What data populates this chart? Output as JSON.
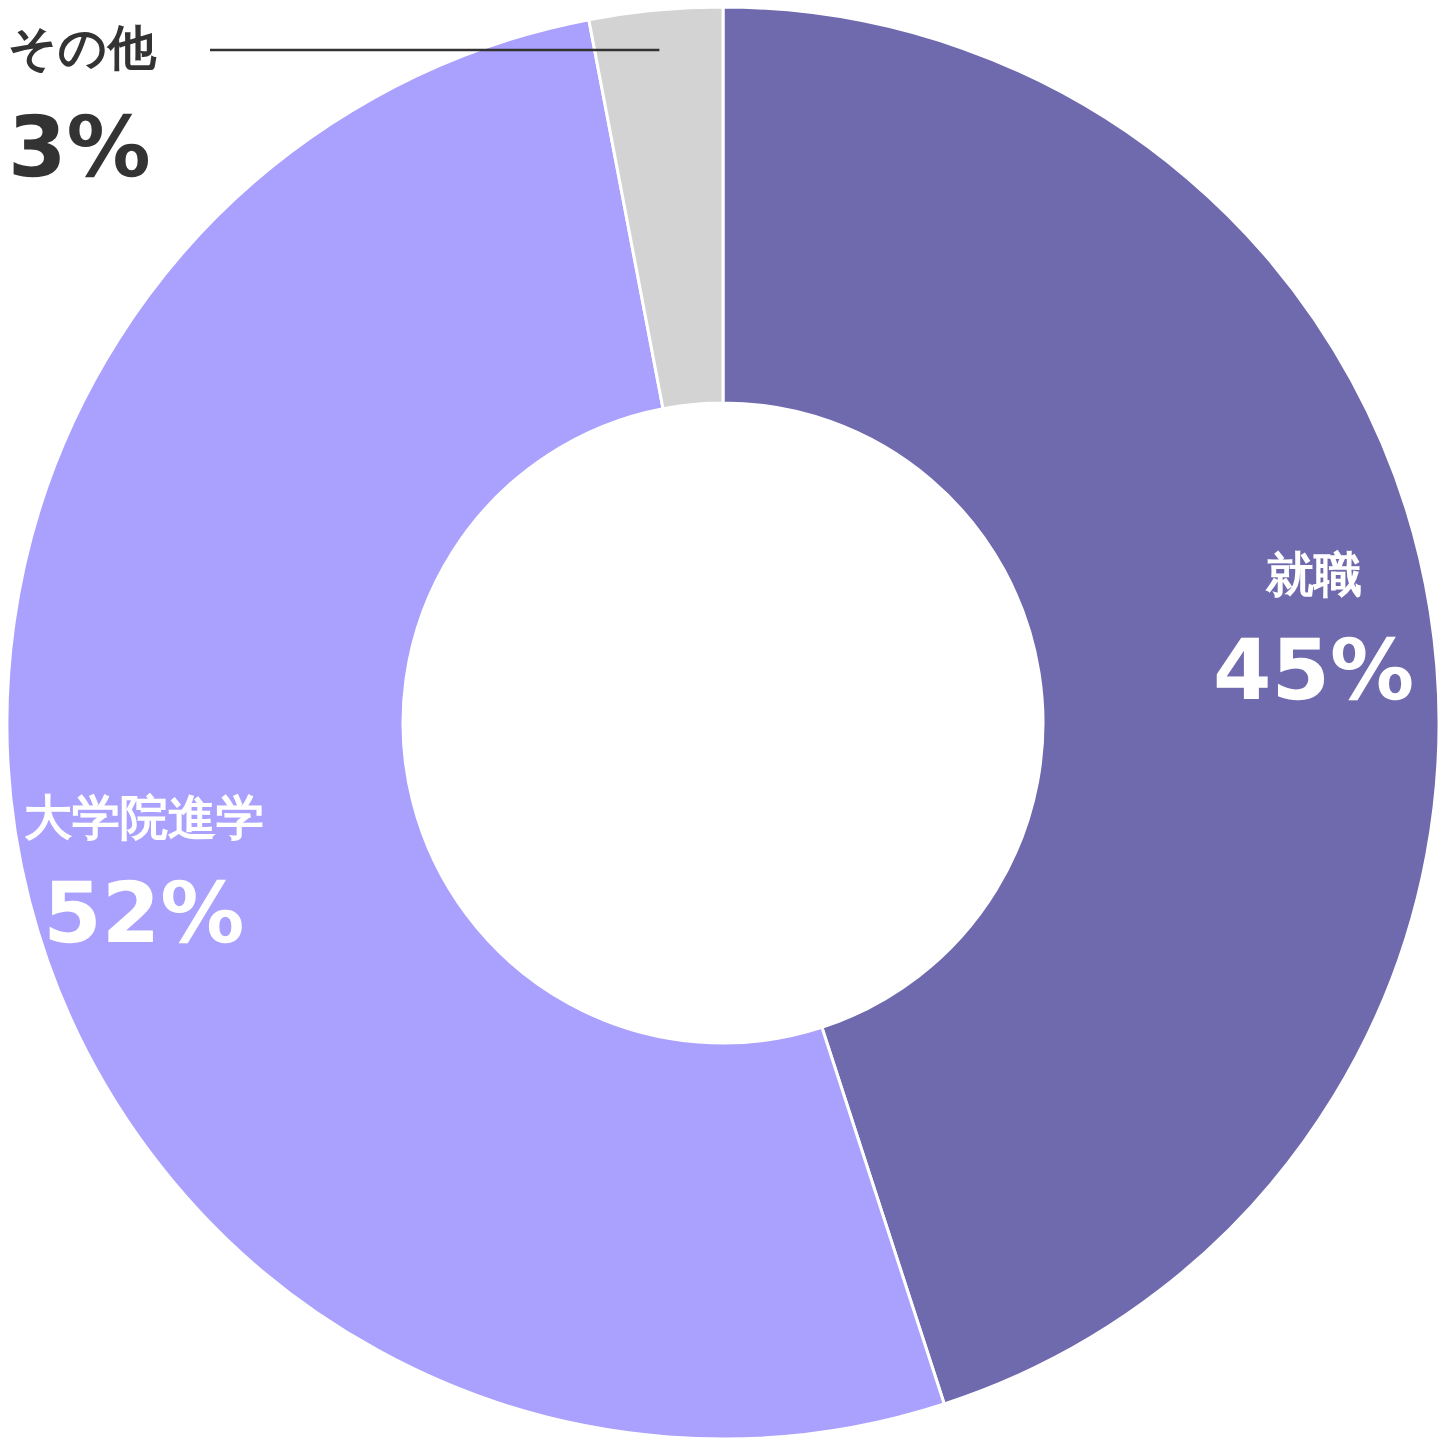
{
  "chart_data": {
    "type": "donut",
    "categories": [
      "就職",
      "大学院進学",
      "その他"
    ],
    "values": [
      45,
      52,
      3
    ],
    "colors": [
      "#6f69ad",
      "#a9a1fd",
      "#d3d3d3"
    ],
    "value_labels": [
      "45%",
      "52%",
      "3%"
    ]
  }
}
